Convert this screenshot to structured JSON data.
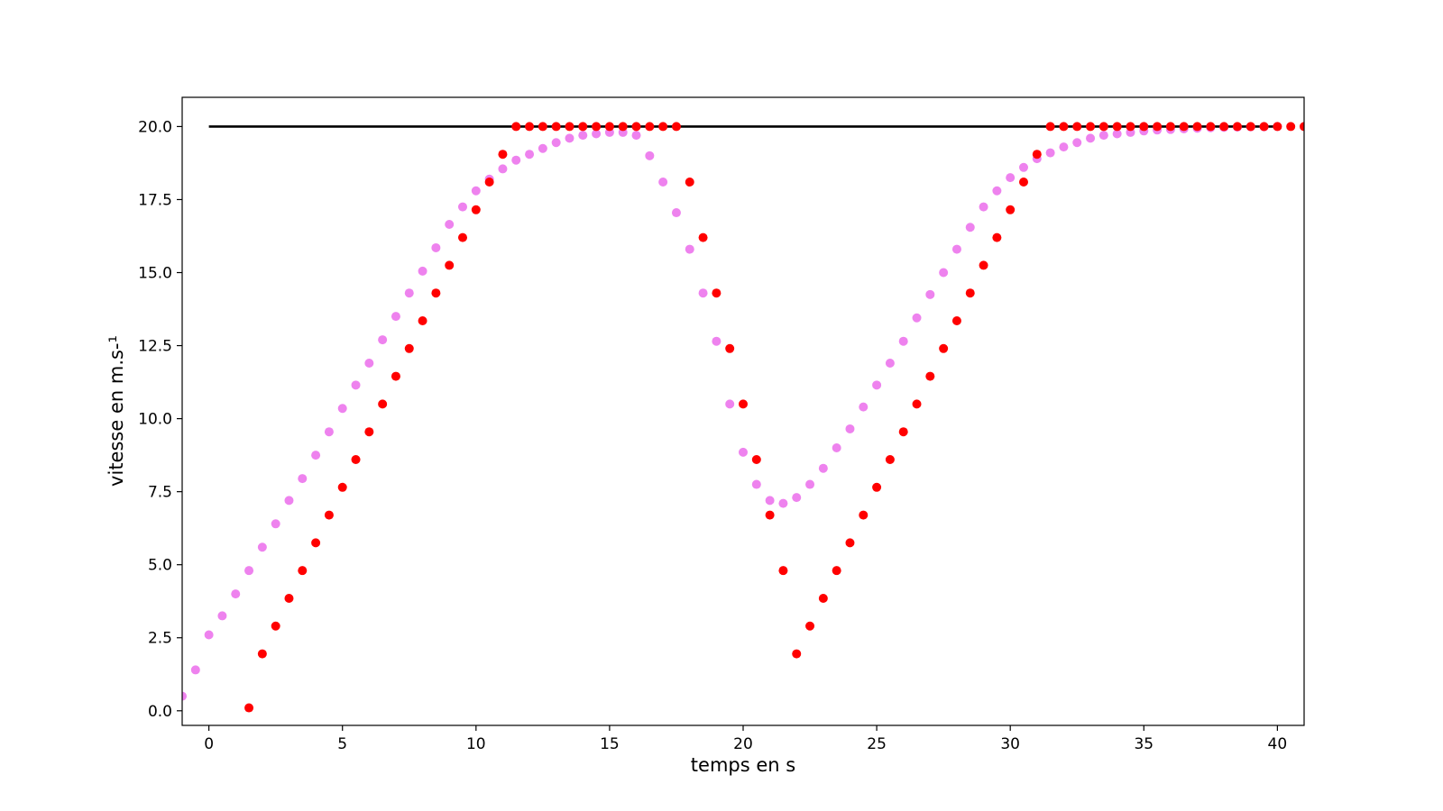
{
  "chart_data": {
    "type": "scatter",
    "title": "",
    "xlabel": "temps en s",
    "ylabel": "vitesse en m.s-¹",
    "xlim": [
      -1,
      41
    ],
    "ylim": [
      -0.5,
      21
    ],
    "xticks": [
      "0",
      "5",
      "10",
      "15",
      "20",
      "25",
      "30",
      "35",
      "40"
    ],
    "yticks": [
      "0.0",
      "2.5",
      "5.0",
      "7.5",
      "10.0",
      "12.5",
      "15.0",
      "17.5",
      "20.0"
    ],
    "grid": false,
    "legend": "none",
    "reference_line": {
      "x": [
        0,
        40
      ],
      "y": [
        20,
        20
      ],
      "color": "#000000"
    },
    "series": [
      {
        "color": "#ee82ee",
        "x": [
          -1,
          -0.5,
          0,
          0.5,
          1,
          1.5,
          2,
          2.5,
          3,
          3.5,
          4,
          4.5,
          5,
          5.5,
          6,
          6.5,
          7,
          7.5,
          8,
          8.5,
          9,
          9.5,
          10,
          10.5,
          11,
          11.5,
          12,
          12.5,
          13,
          13.5,
          14,
          14.5,
          15,
          15.5,
          16,
          16.5,
          17,
          17.5,
          18,
          18.5,
          19,
          19.5,
          20,
          20.5,
          21,
          21.5,
          22,
          22.5,
          23,
          23.5,
          24,
          24.5,
          25,
          25.5,
          26,
          26.5,
          27,
          27.5,
          28,
          28.5,
          29,
          29.5,
          30,
          30.5,
          31,
          31.5,
          32,
          32.5,
          33,
          33.5,
          34,
          34.5,
          35,
          35.5,
          36,
          36.5,
          37,
          37.5,
          38,
          38.5,
          39,
          39.5,
          40
        ],
        "y": [
          0.5,
          1.4,
          2.6,
          3.25,
          4.0,
          4.8,
          5.6,
          6.4,
          7.2,
          7.95,
          8.75,
          9.55,
          10.35,
          11.15,
          11.9,
          12.7,
          13.5,
          14.3,
          15.05,
          15.85,
          16.65,
          17.25,
          17.8,
          18.2,
          18.55,
          18.85,
          19.05,
          19.25,
          19.45,
          19.6,
          19.7,
          19.75,
          19.8,
          19.8,
          19.7,
          19.0,
          18.1,
          17.05,
          15.8,
          14.3,
          12.65,
          10.5,
          8.85,
          7.75,
          7.2,
          7.1,
          7.3,
          7.75,
          8.3,
          9.0,
          9.65,
          10.4,
          11.15,
          11.9,
          12.65,
          13.45,
          14.25,
          15.0,
          15.8,
          16.55,
          17.25,
          17.8,
          18.25,
          18.6,
          18.9,
          19.1,
          19.3,
          19.45,
          19.6,
          19.7,
          19.75,
          19.8,
          19.85,
          19.88,
          19.9,
          19.92,
          19.94,
          19.96,
          19.97,
          19.98,
          19.99,
          19.99,
          20.0
        ]
      },
      {
        "color": "#ff0000",
        "x": [
          1.5,
          2,
          2.5,
          3,
          3.5,
          4,
          4.5,
          5,
          5.5,
          6,
          6.5,
          7,
          7.5,
          8,
          8.5,
          9,
          9.5,
          10,
          10.5,
          11,
          11.5,
          12,
          12.5,
          13,
          13.5,
          14,
          14.5,
          15,
          15.5,
          16,
          16.5,
          17,
          17.5,
          18,
          18.5,
          19,
          19.5,
          20,
          20.5,
          21,
          21.5,
          22,
          22.5,
          23,
          23.5,
          24,
          24.5,
          25,
          25.5,
          26,
          26.5,
          27,
          27.5,
          28,
          28.5,
          29,
          29.5,
          30,
          30.5,
          31,
          31.5,
          32,
          32.5,
          33,
          33.5,
          34,
          34.5,
          35,
          35.5,
          36,
          36.5,
          37,
          37.5,
          38,
          38.5,
          39,
          39.5,
          40,
          40.5,
          41
        ],
        "y": [
          0.1,
          1.95,
          2.9,
          3.85,
          4.8,
          5.75,
          6.7,
          7.65,
          8.6,
          9.55,
          10.5,
          11.45,
          12.4,
          13.35,
          14.3,
          15.25,
          16.2,
          17.15,
          18.1,
          19.05,
          20,
          20,
          20,
          20,
          20,
          20,
          20,
          20,
          20,
          20,
          20,
          20,
          20,
          18.1,
          16.2,
          14.3,
          12.4,
          10.5,
          8.6,
          6.7,
          4.8,
          1.95,
          2.9,
          3.85,
          4.8,
          5.75,
          6.7,
          7.65,
          8.6,
          9.55,
          10.5,
          11.45,
          12.4,
          13.35,
          14.3,
          15.25,
          16.2,
          17.15,
          18.1,
          19.05,
          20,
          20,
          20,
          20,
          20,
          20,
          20,
          20,
          20,
          20,
          20,
          20,
          20,
          20,
          20,
          20,
          20,
          20,
          20,
          20
        ]
      }
    ]
  }
}
